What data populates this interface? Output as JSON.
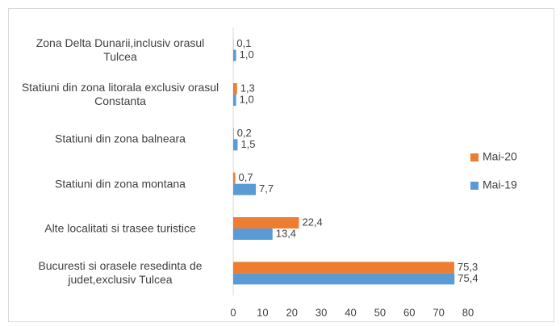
{
  "chart_data": {
    "type": "hbar",
    "categories": [
      "Zona Delta Dunarii,inclusiv  orasul Tulcea",
      "Statiuni din zona litorala exclusiv orasul Constanta",
      "Statiuni din zona balneara",
      "Statiuni din zona montana",
      "Alte localitati si trasee turistice",
      "Bucuresti si orasele resedinta de judet,exclusiv Tulcea"
    ],
    "series": [
      {
        "name": "Mai-20",
        "color": "#ed7d31",
        "values": [
          0.1,
          1.3,
          0.2,
          0.7,
          22.4,
          75.3
        ],
        "value_labels": [
          "0,1",
          "1,3",
          "0,2",
          "0,7",
          "22,4",
          "75,3"
        ]
      },
      {
        "name": "Mai-19",
        "color": "#5b9bd5",
        "values": [
          1.0,
          1.0,
          1.5,
          7.7,
          13.4,
          75.4
        ],
        "value_labels": [
          "1,0",
          "1,0",
          "1,5",
          "7,7",
          "13,4",
          "75,4"
        ]
      }
    ],
    "xlim": [
      0,
      80
    ],
    "xticks": [
      0,
      10,
      20,
      30,
      40,
      50,
      60,
      70,
      80
    ],
    "legend": "right"
  }
}
